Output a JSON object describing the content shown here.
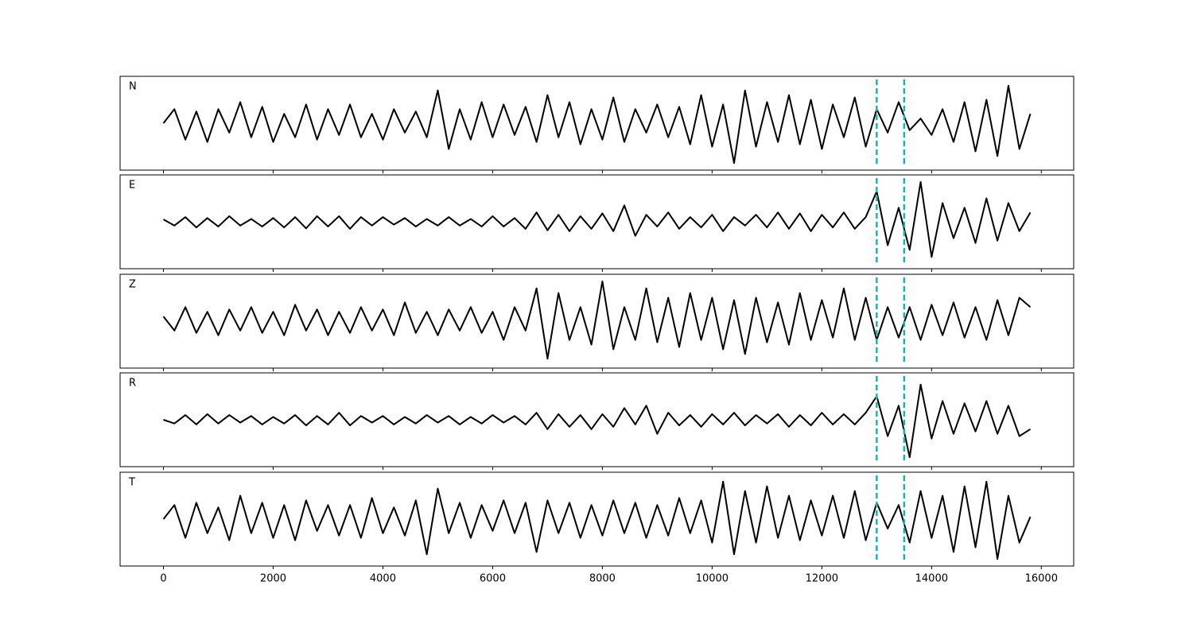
{
  "chart_data": {
    "type": "line",
    "subplots": true,
    "x": [
      0,
      200,
      400,
      600,
      800,
      1000,
      1200,
      1400,
      1600,
      1800,
      2000,
      2200,
      2400,
      2600,
      2800,
      3000,
      3200,
      3400,
      3600,
      3800,
      4000,
      4200,
      4400,
      4600,
      4800,
      5000,
      5200,
      5400,
      5600,
      5800,
      6000,
      6200,
      6400,
      6600,
      6800,
      7000,
      7200,
      7400,
      7600,
      7800,
      8000,
      8200,
      8400,
      8600,
      8800,
      9000,
      9200,
      9400,
      9600,
      9800,
      10000,
      10200,
      10400,
      10600,
      10800,
      11000,
      11200,
      11400,
      11600,
      11800,
      12000,
      12200,
      12400,
      12600,
      12800,
      13000,
      13200,
      13400,
      13600,
      13800,
      14000,
      14200,
      14400,
      14600,
      14800,
      15000,
      15200,
      15400,
      15600,
      15800
    ],
    "xlim": [
      -790,
      16590
    ],
    "xticks": [
      0,
      2000,
      4000,
      6000,
      8000,
      10000,
      12000,
      14000,
      16000
    ],
    "ylim": [
      -1,
      1
    ],
    "vlines": [
      13000,
      13500
    ],
    "vline_color": "#00bfbf",
    "series": [
      {
        "name": "N",
        "color": "#000000",
        "values": [
          0.0,
          0.3,
          -0.35,
          0.25,
          -0.4,
          0.3,
          -0.2,
          0.45,
          -0.3,
          0.35,
          -0.4,
          0.2,
          -0.3,
          0.4,
          -0.35,
          0.3,
          -0.25,
          0.4,
          -0.3,
          0.2,
          -0.35,
          0.3,
          -0.2,
          0.25,
          -0.3,
          0.7,
          -0.55,
          0.3,
          -0.35,
          0.45,
          -0.3,
          0.4,
          -0.25,
          0.35,
          -0.4,
          0.6,
          -0.3,
          0.45,
          -0.45,
          0.3,
          -0.35,
          0.55,
          -0.4,
          0.3,
          -0.2,
          0.4,
          -0.3,
          0.35,
          -0.45,
          0.6,
          -0.5,
          0.4,
          -0.85,
          0.7,
          -0.5,
          0.45,
          -0.4,
          0.6,
          -0.45,
          0.5,
          -0.55,
          0.4,
          -0.3,
          0.55,
          -0.5,
          0.3,
          -0.2,
          0.45,
          -0.15,
          0.1,
          -0.25,
          0.3,
          -0.4,
          0.45,
          -0.6,
          0.5,
          -0.7,
          0.8,
          -0.55,
          0.2
        ]
      },
      {
        "name": "E",
        "color": "#000000",
        "values": [
          0.05,
          -0.08,
          0.1,
          -0.12,
          0.08,
          -0.1,
          0.12,
          -0.08,
          0.06,
          -0.1,
          0.08,
          -0.12,
          0.1,
          -0.14,
          0.12,
          -0.1,
          0.12,
          -0.15,
          0.1,
          -0.08,
          0.1,
          -0.06,
          0.08,
          -0.1,
          0.06,
          -0.08,
          0.1,
          -0.08,
          0.06,
          -0.1,
          0.12,
          -0.1,
          0.08,
          -0.15,
          0.2,
          -0.18,
          0.15,
          -0.2,
          0.12,
          -0.15,
          0.18,
          -0.2,
          0.35,
          -0.3,
          0.15,
          -0.1,
          0.2,
          -0.15,
          0.1,
          -0.12,
          0.15,
          -0.2,
          0.1,
          -0.08,
          0.15,
          -0.12,
          0.2,
          -0.15,
          0.18,
          -0.2,
          0.15,
          -0.12,
          0.2,
          -0.15,
          0.1,
          0.65,
          -0.5,
          0.3,
          -0.6,
          0.85,
          -0.75,
          0.4,
          -0.35,
          0.3,
          -0.45,
          0.5,
          -0.4,
          0.4,
          -0.2,
          0.2
        ]
      },
      {
        "name": "Z",
        "color": "#000000",
        "values": [
          0.1,
          -0.2,
          0.3,
          -0.25,
          0.2,
          -0.3,
          0.25,
          -0.2,
          0.3,
          -0.25,
          0.2,
          -0.3,
          0.35,
          -0.2,
          0.25,
          -0.3,
          0.2,
          -0.25,
          0.3,
          -0.2,
          0.25,
          -0.3,
          0.4,
          -0.25,
          0.2,
          -0.3,
          0.25,
          -0.2,
          0.3,
          -0.25,
          0.2,
          -0.4,
          0.3,
          -0.2,
          0.7,
          -0.8,
          0.6,
          -0.4,
          0.3,
          -0.5,
          0.85,
          -0.6,
          0.3,
          -0.4,
          0.7,
          -0.45,
          0.5,
          -0.55,
          0.6,
          -0.4,
          0.5,
          -0.6,
          0.45,
          -0.7,
          0.5,
          -0.45,
          0.4,
          -0.5,
          0.6,
          -0.4,
          0.45,
          -0.35,
          0.7,
          -0.4,
          0.5,
          -0.4,
          0.3,
          -0.35,
          0.3,
          -0.4,
          0.35,
          -0.3,
          0.4,
          -0.35,
          0.3,
          -0.4,
          0.45,
          -0.3,
          0.5,
          0.3
        ]
      },
      {
        "name": "R",
        "color": "#000000",
        "values": [
          0.0,
          -0.08,
          0.1,
          -0.1,
          0.12,
          -0.08,
          0.1,
          -0.06,
          0.08,
          -0.1,
          0.06,
          -0.08,
          0.1,
          -0.12,
          0.08,
          -0.1,
          0.15,
          -0.12,
          0.08,
          -0.06,
          0.08,
          -0.1,
          0.06,
          -0.08,
          0.1,
          -0.06,
          0.08,
          -0.1,
          0.06,
          -0.08,
          0.1,
          -0.06,
          0.08,
          -0.1,
          0.15,
          -0.2,
          0.12,
          -0.15,
          0.1,
          -0.2,
          0.12,
          -0.15,
          0.25,
          -0.1,
          0.3,
          -0.3,
          0.15,
          -0.12,
          0.1,
          -0.15,
          0.12,
          -0.1,
          0.15,
          -0.12,
          0.1,
          -0.08,
          0.12,
          -0.15,
          0.1,
          -0.12,
          0.15,
          -0.1,
          0.12,
          -0.1,
          0.15,
          0.5,
          -0.35,
          0.3,
          -0.8,
          0.75,
          -0.4,
          0.4,
          -0.3,
          0.35,
          -0.25,
          0.4,
          -0.3,
          0.3,
          -0.35,
          -0.2
        ]
      },
      {
        "name": "T",
        "color": "#000000",
        "values": [
          0.0,
          0.3,
          -0.4,
          0.35,
          -0.3,
          0.25,
          -0.45,
          0.5,
          -0.3,
          0.35,
          -0.4,
          0.3,
          -0.45,
          0.4,
          -0.25,
          0.3,
          -0.35,
          0.3,
          -0.4,
          0.45,
          -0.3,
          0.25,
          -0.35,
          0.4,
          -0.75,
          0.65,
          -0.3,
          0.35,
          -0.4,
          0.3,
          -0.25,
          0.4,
          -0.3,
          0.35,
          -0.7,
          0.4,
          -0.3,
          0.35,
          -0.4,
          0.3,
          -0.35,
          0.4,
          -0.3,
          0.35,
          -0.4,
          0.3,
          -0.35,
          0.45,
          -0.3,
          0.4,
          -0.5,
          0.8,
          -0.75,
          0.6,
          -0.5,
          0.7,
          -0.4,
          0.5,
          -0.45,
          0.4,
          -0.35,
          0.5,
          -0.4,
          0.6,
          -0.45,
          0.35,
          -0.2,
          0.3,
          -0.5,
          0.6,
          -0.4,
          0.5,
          -0.7,
          0.7,
          -0.6,
          0.8,
          -0.85,
          0.5,
          -0.5,
          0.05
        ]
      }
    ]
  }
}
